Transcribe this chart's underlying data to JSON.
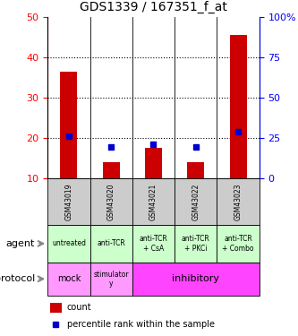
{
  "title": "GDS1339 / 167351_f_at",
  "samples": [
    "GSM43019",
    "GSM43020",
    "GSM43021",
    "GSM43022",
    "GSM43023"
  ],
  "count_values": [
    36.5,
    14.0,
    17.5,
    14.0,
    45.5
  ],
  "count_bottom": [
    10,
    10,
    10,
    10,
    10
  ],
  "percentile_values": [
    26.0,
    19.5,
    21.0,
    19.5,
    28.5
  ],
  "left_ylim": [
    10,
    50
  ],
  "left_yticks": [
    10,
    20,
    30,
    40,
    50
  ],
  "right_ylim": [
    0,
    100
  ],
  "right_yticks": [
    0,
    25,
    50,
    75,
    100
  ],
  "right_yticklabels": [
    "0",
    "25",
    "50",
    "75",
    "100%"
  ],
  "bar_color": "#cc0000",
  "percentile_color": "#0000cc",
  "agent_labels": [
    "untreated",
    "anti-TCR",
    "anti-TCR\n+ CsA",
    "anti-TCR\n+ PKCi",
    "anti-TCR\n+ Combo"
  ],
  "agent_bg_color": "#ccffcc",
  "sample_bg_color": "#cccccc",
  "protocol_mock_bg": "#ff99ff",
  "protocol_stimulatory_bg": "#ff99ff",
  "protocol_inhibitory_bg": "#ff44ff",
  "dotted_values": [
    20,
    30,
    40
  ],
  "legend_count_color": "#cc0000",
  "legend_percentile_color": "#0000cc",
  "bar_width": 0.4,
  "left_axis_color": "red",
  "right_axis_color": "blue"
}
